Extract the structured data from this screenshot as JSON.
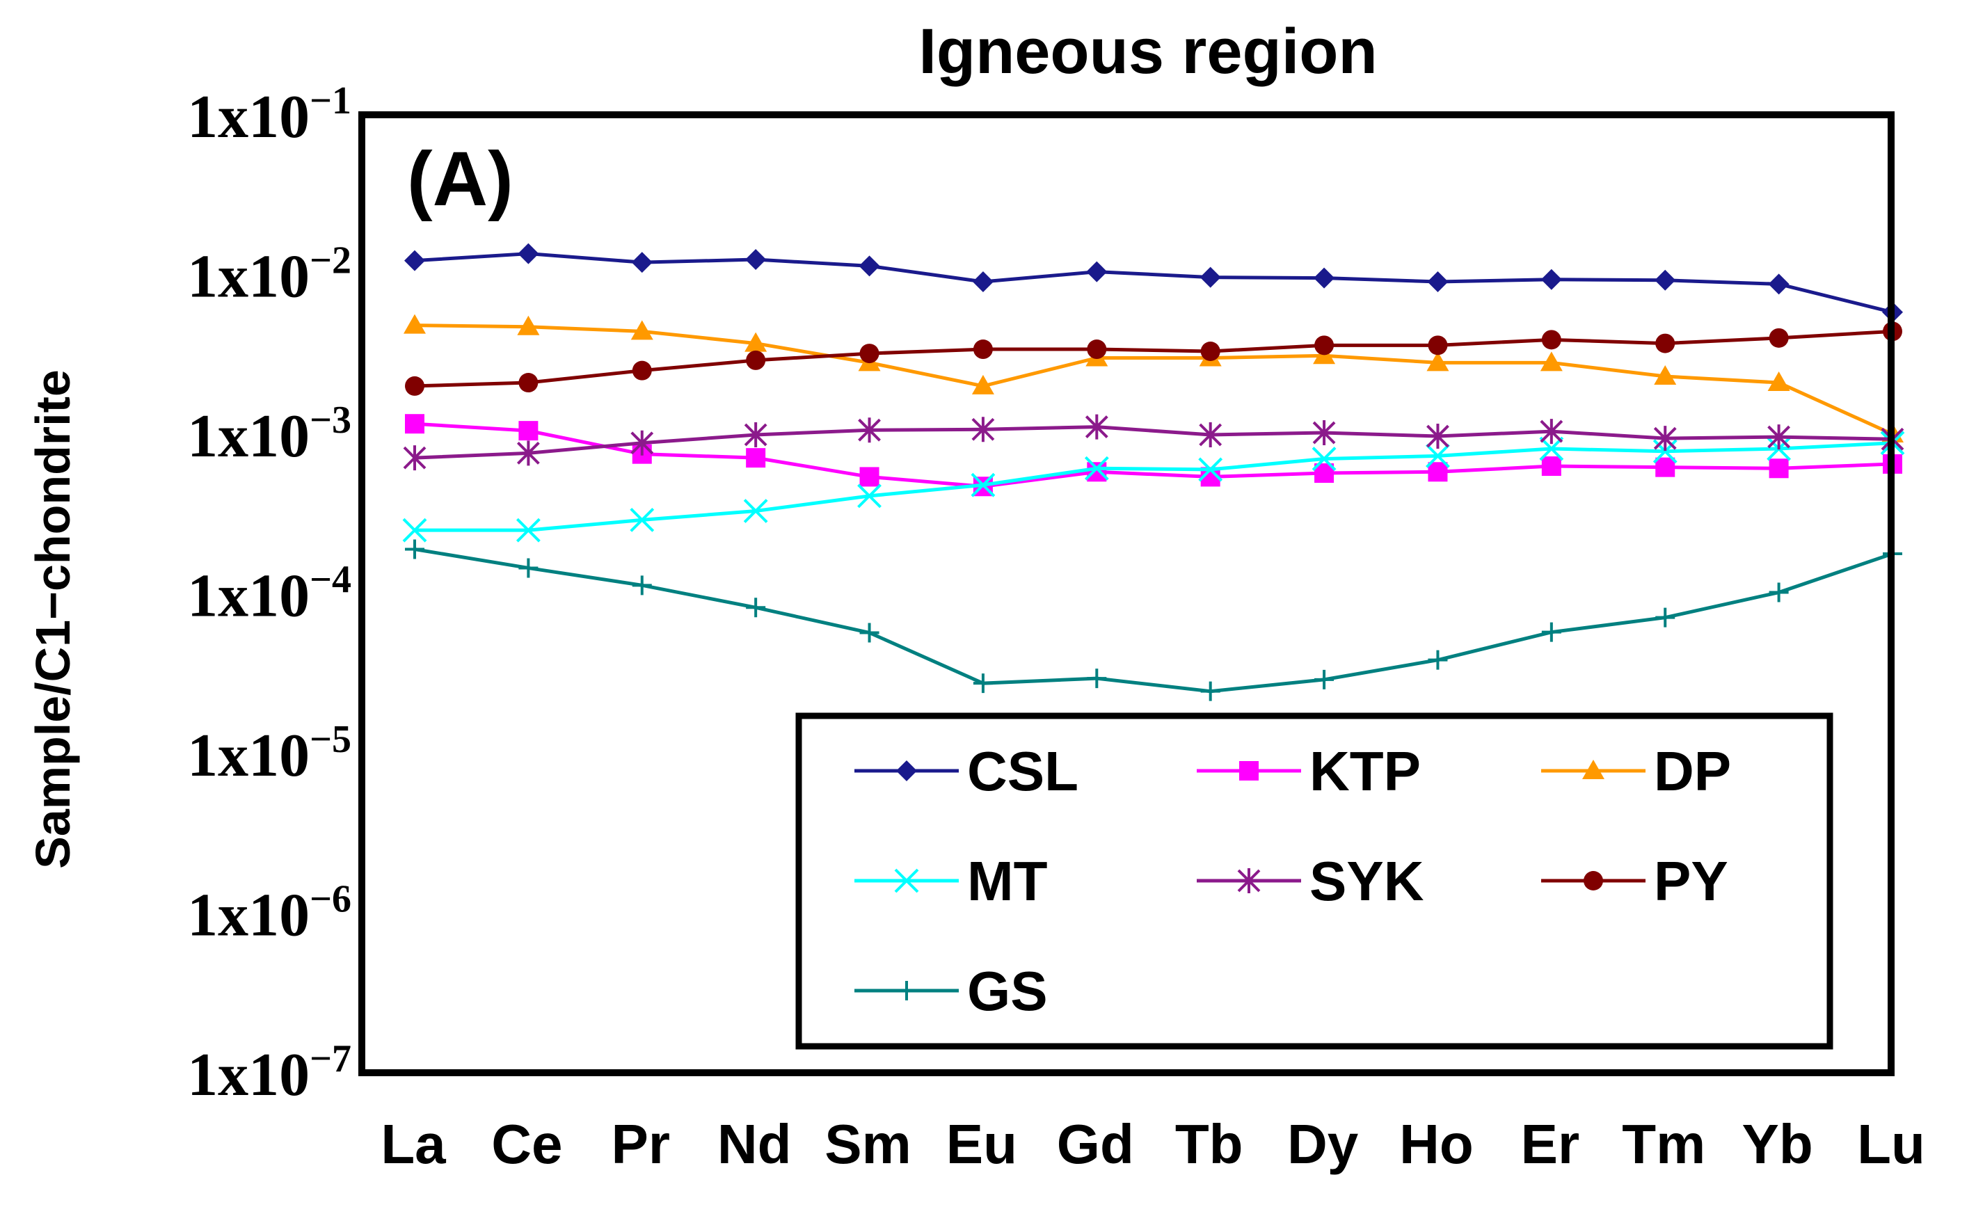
{
  "chart_data": {
    "type": "line",
    "title": "Igneous region",
    "panel_label": "(A)",
    "xlabel": "",
    "ylabel": "Sample/C1−chondrite",
    "yscale": "log",
    "ylim": [
      1e-07,
      0.1
    ],
    "y_ticks": [
      {
        "value": 0.1,
        "mantissa": "1x10",
        "exponent": "−1"
      },
      {
        "value": 0.01,
        "mantissa": "1x10",
        "exponent": "−2"
      },
      {
        "value": 0.001,
        "mantissa": "1x10",
        "exponent": "−3"
      },
      {
        "value": 0.0001,
        "mantissa": "1x10",
        "exponent": "−4"
      },
      {
        "value": 1e-05,
        "mantissa": "1x10",
        "exponent": "−5"
      },
      {
        "value": 1e-06,
        "mantissa": "1x10",
        "exponent": "−6"
      },
      {
        "value": 1e-07,
        "mantissa": "1x10",
        "exponent": "−7"
      }
    ],
    "categories": [
      "La",
      "Ce",
      "Pr",
      "Nd",
      "Sm",
      "Eu",
      "Gd",
      "Tb",
      "Dy",
      "Ho",
      "Er",
      "Tm",
      "Yb",
      "Lu"
    ],
    "legend_position": "bottom-right",
    "series": [
      {
        "name": "CSL",
        "color": "#1a1a8c",
        "marker": "diamond",
        "values": [
          0.0122,
          0.0135,
          0.0119,
          0.0124,
          0.0113,
          0.009,
          0.0104,
          0.0096,
          0.0095,
          0.009,
          0.0093,
          0.0092,
          0.0087,
          0.0058
        ]
      },
      {
        "name": "KTP",
        "color": "#ff00ff",
        "marker": "square",
        "values": [
          0.00116,
          0.00105,
          0.00075,
          0.00071,
          0.00054,
          0.00047,
          0.00058,
          0.00054,
          0.00057,
          0.00058,
          0.00063,
          0.00062,
          0.00061,
          0.00065
        ]
      },
      {
        "name": "DP",
        "color": "#ff9900",
        "marker": "triangle",
        "values": [
          0.0048,
          0.0047,
          0.0044,
          0.0037,
          0.0028,
          0.002,
          0.003,
          0.003,
          0.0031,
          0.0028,
          0.0028,
          0.0023,
          0.0021,
          0.001
        ]
      },
      {
        "name": "MT",
        "color": "#00ffff",
        "marker": "x",
        "values": [
          0.00025,
          0.00025,
          0.00029,
          0.00033,
          0.00041,
          0.00048,
          0.00061,
          0.0006,
          0.0007,
          0.00073,
          0.00081,
          0.00078,
          0.00081,
          0.00088
        ]
      },
      {
        "name": "SYK",
        "color": "#8b1a8b",
        "marker": "asterisk",
        "values": [
          0.00071,
          0.00076,
          0.00088,
          0.00099,
          0.00106,
          0.00107,
          0.00111,
          0.00099,
          0.00102,
          0.00097,
          0.00104,
          0.00094,
          0.00096,
          0.00093
        ]
      },
      {
        "name": "PY",
        "color": "#800000",
        "marker": "circle",
        "values": [
          0.002,
          0.0021,
          0.0025,
          0.0029,
          0.0032,
          0.0034,
          0.0034,
          0.0033,
          0.0036,
          0.0036,
          0.0039,
          0.0037,
          0.004,
          0.0044
        ]
      },
      {
        "name": "GS",
        "color": "#008080",
        "marker": "plus",
        "values": [
          0.00019,
          0.000145,
          0.000113,
          8.2e-05,
          5.7e-05,
          2.75e-05,
          2.95e-05,
          2.45e-05,
          2.9e-05,
          3.85e-05,
          5.75e-05,
          7.1e-05,
          0.000102,
          0.000178
        ]
      }
    ]
  }
}
